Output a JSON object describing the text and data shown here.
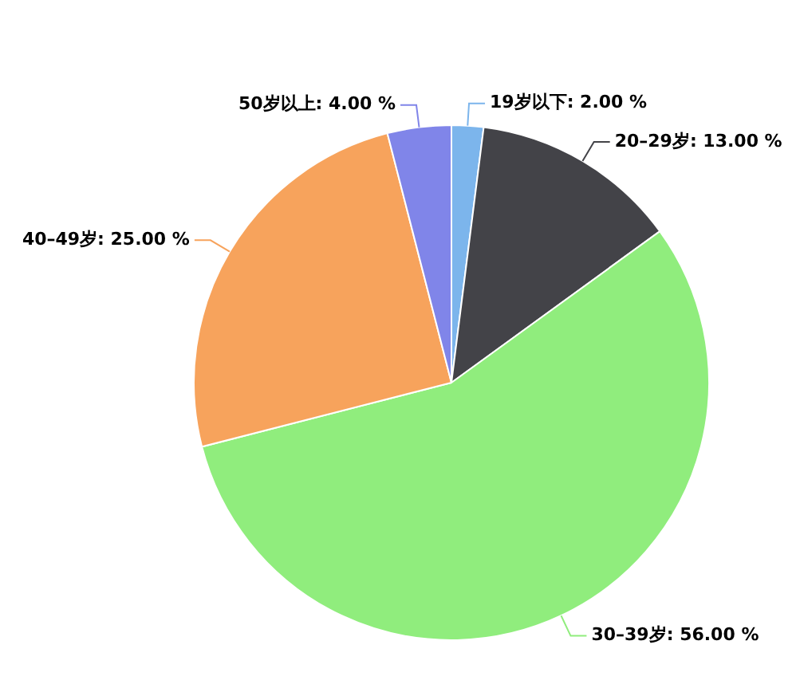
{
  "chart_data": {
    "type": "pie",
    "categories": [
      "19岁以下",
      "20–29岁",
      "30–39岁",
      "40–49岁",
      "50岁以上"
    ],
    "values": [
      2,
      13,
      56,
      25,
      4
    ],
    "value_labels": [
      "2.00 %",
      "13.00 %",
      "56.00 %",
      "25.00 %",
      "4.00 %"
    ],
    "colors": [
      "#7cb5ec",
      "#434348",
      "#90ed7d",
      "#f7a35c",
      "#8085e9"
    ],
    "legend": false
  }
}
